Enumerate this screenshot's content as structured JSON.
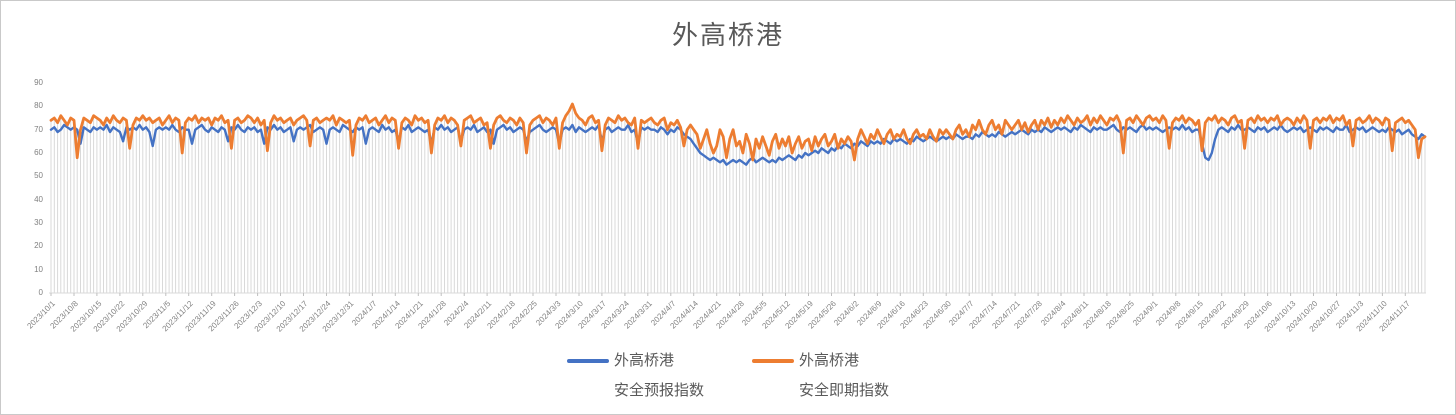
{
  "legend": {
    "items": [
      {
        "line1": "外高桥港",
        "line2": "安全预报指数",
        "color": "#4472C4"
      },
      {
        "line1": "外高桥港",
        "line2": "安全即期指数",
        "color": "#ED7D31"
      }
    ]
  },
  "chart_data": {
    "type": "line",
    "title": "外高桥港",
    "xlabel": "",
    "ylabel": "",
    "ylim": [
      0,
      90
    ],
    "y_ticks": [
      90,
      80,
      70,
      60,
      50,
      40,
      30,
      20,
      10,
      0
    ],
    "x_start": "2023/10/1",
    "x_interval": "daily",
    "x_tick_interval_points": 7,
    "x_tick_labels": [
      "2023/10/1",
      "2023/10/8",
      "2023/10/15",
      "2023/10/22",
      "2023/10/29",
      "2023/11/5",
      "2023/11/12",
      "2023/11/19",
      "2023/11/26",
      "2023/12/3",
      "2023/12/10",
      "2023/12/17",
      "2023/12/24",
      "2023/12/31",
      "2024/1/7",
      "2024/1/14",
      "2024/1/21",
      "2024/1/28",
      "2024/2/4",
      "2024/2/11",
      "2024/2/18",
      "2024/2/25",
      "2024/3/3",
      "2024/3/10",
      "2024/3/17",
      "2024/3/24",
      "2024/3/31",
      "2024/4/7",
      "2024/4/14",
      "2024/4/21",
      "2024/4/28",
      "2024/5/5",
      "2024/5/12",
      "2024/5/19",
      "2024/5/26",
      "2024/6/2",
      "2024/6/9",
      "2024/6/16",
      "2024/6/23",
      "2024/6/30",
      "2024/7/7",
      "2024/7/14",
      "2024/7/21",
      "2024/7/28",
      "2024/8/4",
      "2024/8/11",
      "2024/8/18",
      "2024/8/25",
      "2024/9/1",
      "2024/9/8",
      "2024/9/15",
      "2024/9/22",
      "2024/9/29",
      "2024/10/6",
      "2024/10/13",
      "2024/10/20",
      "2024/10/27",
      "2024/11/3",
      "2024/11/10",
      "2024/11/17"
    ],
    "colors": {
      "drop_line": "#D9D9D9",
      "axis": "#D9D9D9",
      "tick": "#BFBFBF",
      "axis_label": "#808080",
      "title": "#595959"
    },
    "grid": "vertical-drop-lines",
    "legend_position": "bottom",
    "series": [
      {
        "name": "外高桥港安全预报指数",
        "color": "#4472C4",
        "values": [
          70,
          71,
          69,
          70,
          72,
          71,
          70,
          71,
          70,
          64,
          71,
          70,
          69,
          71,
          70,
          71,
          70,
          72,
          69,
          71,
          70,
          69,
          65,
          71,
          70,
          71,
          70,
          72,
          70,
          71,
          69,
          63,
          70,
          71,
          70,
          71,
          70,
          72,
          70,
          69,
          71,
          70,
          70,
          64,
          70,
          71,
          72,
          70,
          69,
          71,
          70,
          69,
          71,
          70,
          65,
          71,
          70,
          72,
          70,
          69,
          71,
          70,
          71,
          69,
          70,
          64,
          71,
          70,
          72,
          70,
          71,
          69,
          70,
          71,
          65,
          70,
          71,
          70,
          71,
          72,
          69,
          70,
          71,
          70,
          64,
          70,
          71,
          70,
          69,
          72,
          71,
          70,
          69,
          71,
          70,
          71,
          64,
          70,
          71,
          70,
          69,
          72,
          70,
          71,
          69,
          70,
          65,
          71,
          70,
          72,
          69,
          70,
          71,
          70,
          69,
          70,
          64,
          71,
          70,
          72,
          70,
          71,
          69,
          70,
          71,
          65,
          70,
          71,
          70,
          72,
          69,
          70,
          71,
          69,
          70,
          64,
          70,
          71,
          72,
          70,
          71,
          69,
          70,
          71,
          70,
          65,
          69,
          70,
          71,
          72,
          70,
          69,
          70,
          71,
          70,
          64,
          70,
          71,
          70,
          72,
          69,
          71,
          70,
          69,
          70,
          71,
          70,
          72,
          65,
          70,
          71,
          69,
          70,
          71,
          70,
          70,
          72,
          69,
          70,
          64,
          71,
          70,
          71,
          70,
          70,
          69,
          71,
          70,
          68,
          70,
          69,
          71,
          70,
          68,
          67,
          66,
          64,
          62,
          60,
          59,
          58,
          57,
          58,
          57,
          56,
          57,
          55,
          56,
          57,
          56,
          57,
          56,
          55,
          57,
          58,
          56,
          57,
          58,
          57,
          56,
          57,
          56,
          58,
          57,
          58,
          59,
          58,
          57,
          59,
          58,
          60,
          59,
          60,
          61,
          60,
          62,
          61,
          60,
          62,
          61,
          63,
          62,
          64,
          63,
          62,
          64,
          63,
          65,
          64,
          63,
          65,
          64,
          65,
          64,
          66,
          65,
          64,
          66,
          65,
          66,
          65,
          64,
          66,
          65,
          67,
          66,
          65,
          66,
          67,
          66,
          65,
          66,
          67,
          66,
          67,
          66,
          68,
          67,
          66,
          67,
          67,
          66,
          68,
          67,
          69,
          68,
          67,
          68,
          67,
          69,
          68,
          67,
          68,
          69,
          68,
          69,
          70,
          69,
          68,
          70,
          69,
          70,
          69,
          71,
          70,
          69,
          70,
          71,
          70,
          71,
          70,
          69,
          71,
          70,
          72,
          71,
          70,
          69,
          71,
          70,
          71,
          70,
          70,
          71,
          72,
          70,
          69,
          71,
          70,
          71,
          70,
          69,
          71,
          72,
          70,
          71,
          70,
          71,
          70,
          69,
          70,
          71,
          70,
          71,
          70,
          72,
          70,
          71,
          69,
          70,
          70,
          64,
          58,
          57,
          60,
          66,
          70,
          71,
          70,
          69,
          71,
          70,
          72,
          70,
          70,
          71,
          70,
          69,
          71,
          70,
          71,
          69,
          70,
          71,
          70,
          72,
          70,
          69,
          70,
          71,
          70,
          71,
          69,
          70,
          71,
          70,
          69,
          71,
          70,
          71,
          70,
          69,
          71,
          70,
          70,
          72,
          69,
          70,
          71,
          70,
          71,
          69,
          70,
          71,
          70,
          69,
          70,
          69,
          71,
          70,
          69,
          70,
          68,
          69,
          70,
          68,
          67,
          66,
          68,
          67
        ]
      },
      {
        "name": "外高桥港安全即期指数",
        "color": "#ED7D31",
        "values": [
          74,
          75,
          73,
          76,
          74,
          72,
          75,
          74,
          58,
          70,
          75,
          74,
          73,
          76,
          75,
          74,
          72,
          75,
          73,
          76,
          74,
          73,
          75,
          74,
          62,
          72,
          75,
          74,
          76,
          74,
          75,
          73,
          74,
          75,
          72,
          74,
          76,
          73,
          75,
          74,
          60,
          73,
          75,
          74,
          76,
          73,
          75,
          74,
          75,
          72,
          75,
          74,
          76,
          73,
          74,
          62,
          74,
          75,
          73,
          74,
          76,
          75,
          73,
          75,
          72,
          74,
          61,
          73,
          76,
          74,
          75,
          73,
          74,
          75,
          72,
          74,
          75,
          76,
          74,
          63,
          74,
          75,
          73,
          74,
          75,
          74,
          76,
          72,
          75,
          74,
          73,
          74,
          59,
          72,
          75,
          74,
          76,
          73,
          74,
          75,
          72,
          74,
          76,
          73,
          75,
          74,
          62,
          73,
          75,
          74,
          72,
          76,
          74,
          75,
          73,
          74,
          60,
          72,
          75,
          74,
          76,
          73,
          75,
          74,
          72,
          63,
          74,
          75,
          76,
          73,
          74,
          75,
          72,
          73,
          62,
          72,
          75,
          76,
          74,
          73,
          75,
          74,
          72,
          75,
          73,
          60,
          72,
          74,
          75,
          76,
          73,
          75,
          74,
          72,
          75,
          62,
          73,
          76,
          78,
          81,
          77,
          75,
          74,
          72,
          75,
          76,
          73,
          74,
          61,
          72,
          75,
          74,
          73,
          76,
          74,
          75,
          73,
          72,
          75,
          62,
          74,
          73,
          74,
          75,
          73,
          72,
          74,
          75,
          70,
          73,
          72,
          74,
          71,
          63,
          70,
          72,
          70,
          68,
          62,
          66,
          70,
          64,
          60,
          63,
          70,
          67,
          58,
          66,
          70,
          63,
          65,
          60,
          68,
          64,
          57,
          66,
          62,
          67,
          63,
          59,
          65,
          68,
          62,
          66,
          63,
          67,
          60,
          64,
          67,
          62,
          65,
          66,
          61,
          67,
          63,
          66,
          68,
          63,
          65,
          68,
          62,
          66,
          64,
          67,
          65,
          57,
          66,
          70,
          67,
          64,
          68,
          66,
          70,
          67,
          64,
          68,
          70,
          66,
          68,
          67,
          70,
          66,
          64,
          68,
          70,
          67,
          68,
          66,
          70,
          67,
          65,
          70,
          68,
          70,
          68,
          66,
          70,
          72,
          68,
          70,
          67,
          72,
          70,
          74,
          70,
          68,
          72,
          74,
          70,
          72,
          68,
          74,
          72,
          70,
          72,
          74,
          70,
          73,
          69,
          72,
          74,
          70,
          74,
          72,
          75,
          71,
          74,
          72,
          75,
          73,
          76,
          74,
          72,
          75,
          73,
          74,
          76,
          72,
          75,
          73,
          76,
          74,
          72,
          75,
          74,
          76,
          73,
          60,
          74,
          75,
          73,
          76,
          74,
          72,
          75,
          76,
          74,
          75,
          73,
          76,
          74,
          62,
          73,
          75,
          74,
          76,
          73,
          75,
          74,
          72,
          74,
          61,
          73,
          75,
          74,
          76,
          73,
          75,
          74,
          72,
          75,
          76,
          73,
          74,
          62,
          74,
          75,
          73,
          76,
          74,
          75,
          73,
          75,
          74,
          76,
          72,
          74,
          75,
          74,
          72,
          75,
          73,
          76,
          74,
          62,
          74,
          75,
          73,
          75,
          74,
          76,
          73,
          75,
          74,
          76,
          72,
          74,
          63,
          74,
          75,
          73,
          74,
          76,
          73,
          75,
          74,
          72,
          75,
          74,
          61,
          73,
          74,
          75,
          73,
          74,
          72,
          70,
          58,
          66,
          67
        ]
      }
    ]
  }
}
